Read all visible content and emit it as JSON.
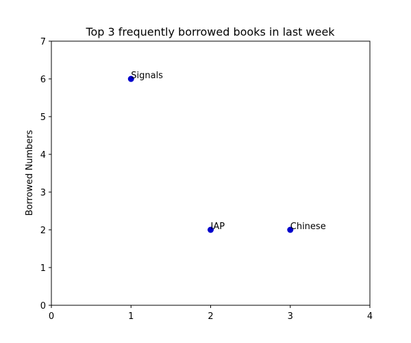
{
  "chart_data": {
    "type": "scatter",
    "title": "Top 3 frequently borrowed books in last week",
    "xlabel": "",
    "ylabel": "Borrowed Numbers",
    "xlim": [
      0,
      4
    ],
    "ylim": [
      0,
      7
    ],
    "xticks": [
      "0",
      "1",
      "2",
      "3",
      "4"
    ],
    "yticks": [
      "0",
      "1",
      "2",
      "3",
      "4",
      "5",
      "6",
      "7"
    ],
    "grid": false,
    "marker_color": "#0000cc",
    "points": [
      {
        "x": 1,
        "y": 6,
        "label": "Signals"
      },
      {
        "x": 2,
        "y": 2,
        "label": "IAP"
      },
      {
        "x": 3,
        "y": 2,
        "label": "Chinese"
      }
    ]
  }
}
